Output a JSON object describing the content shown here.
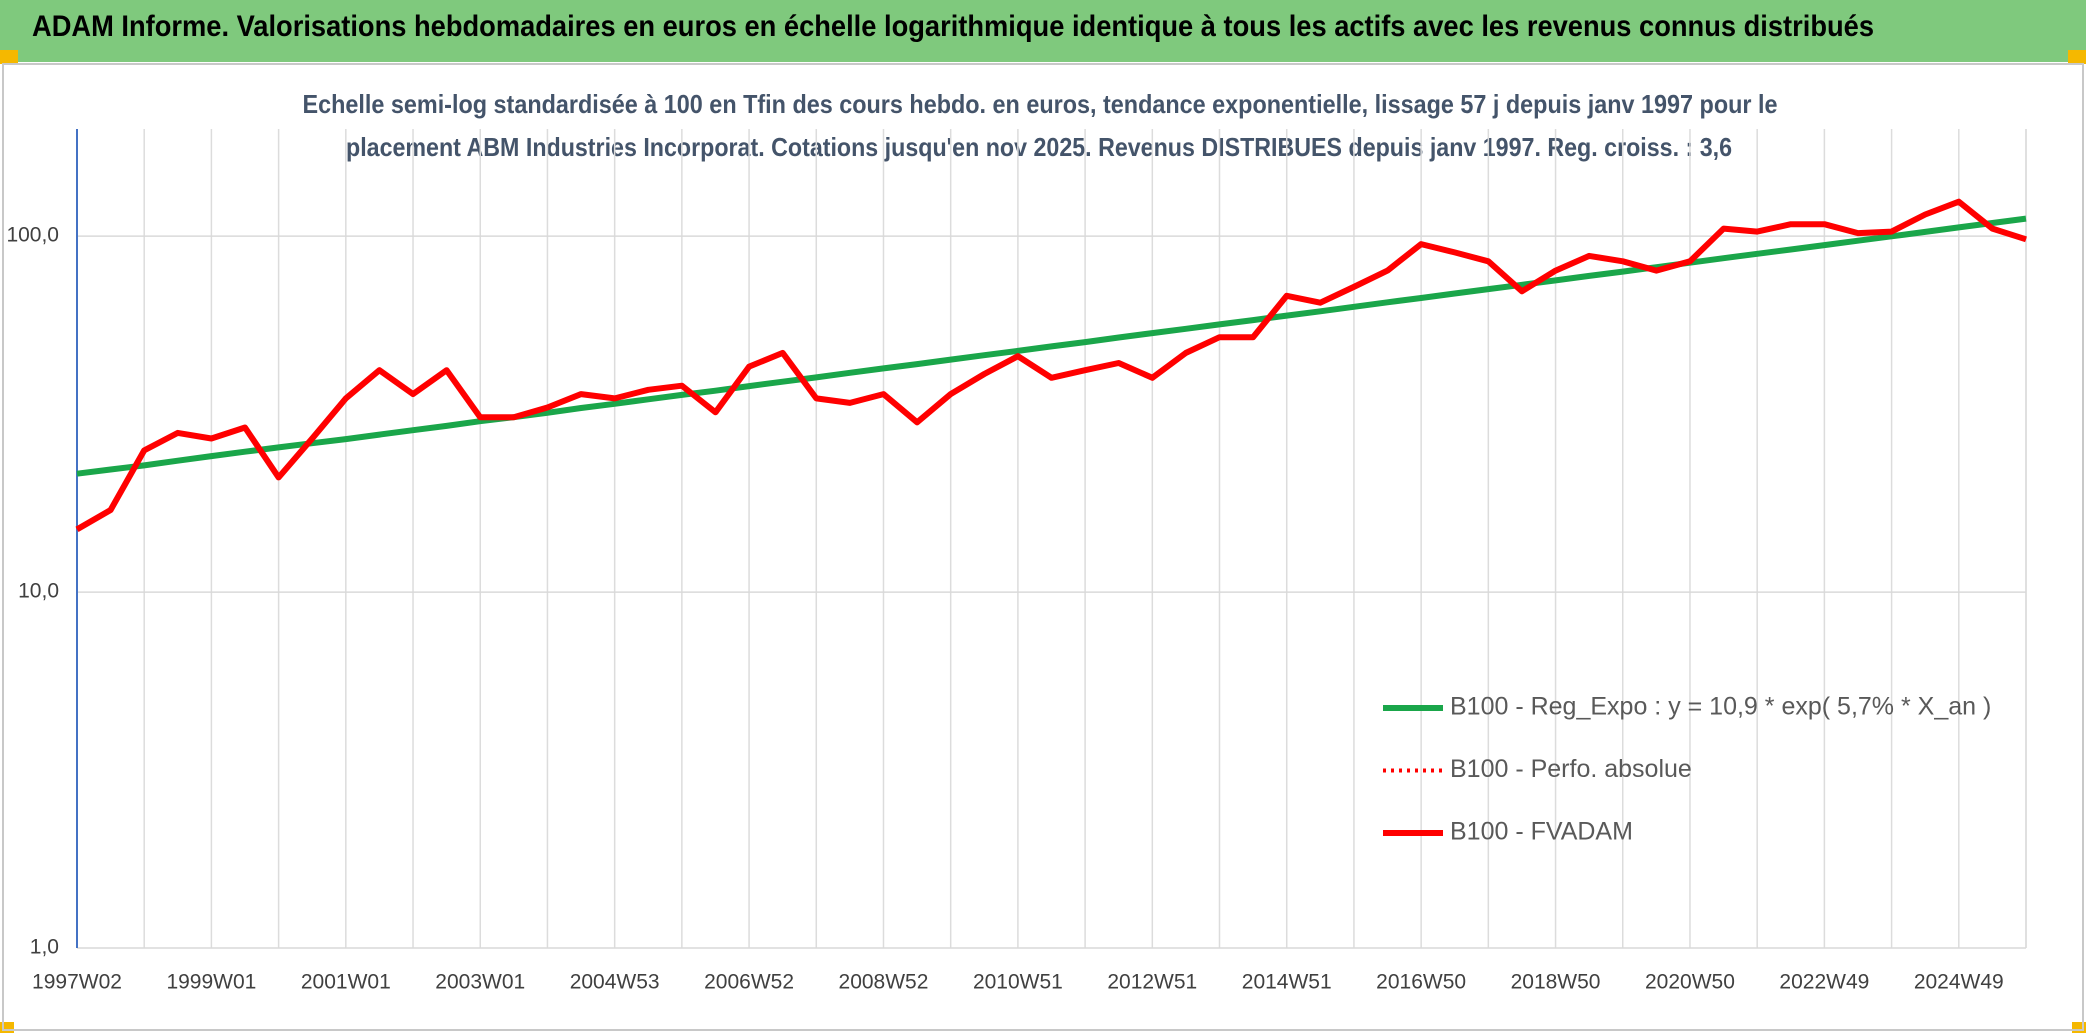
{
  "chart_data": {
    "type": "line",
    "title": "ADAM Informe. Valorisations hebdomadaires en euros en échelle logarithmique identique à tous les actifs avec les revenus connus distribués",
    "subtitle": [
      "Echelle semi-log standardisée à 100 en Tfin des cours hebdo. en euros, tendance exponentielle, lissage 57 j depuis janv 1997 pour le",
      "placement ABM Industries Incorporat. Cotations jusqu'en nov 2025. Revenus DISTRIBUES depuis janv 1997. Reg. croiss. : 3,6"
    ],
    "categories": [
      "1997W02",
      null,
      null,
      null,
      "1999W01",
      null,
      null,
      null,
      "2001W01",
      null,
      null,
      null,
      "2003W01",
      null,
      null,
      null,
      "2004W53",
      null,
      null,
      null,
      "2006W52",
      null,
      null,
      null,
      "2008W52",
      null,
      null,
      null,
      "2010W51",
      null,
      null,
      null,
      "2012W51",
      null,
      null,
      null,
      "2014W51",
      null,
      null,
      null,
      "2016W50",
      null,
      null,
      null,
      "2018W50",
      null,
      null,
      null,
      "2020W50",
      null,
      null,
      null,
      "2022W49",
      null,
      null,
      null,
      "2024W49",
      null,
      null
    ],
    "series": [
      {
        "name": "B100 - Reg_Expo : y = 10,9 * exp( 5,7% *  X_an )",
        "color": "#1aa64a",
        "dash": "solid",
        "values": [
          21.5,
          22.1,
          22.7,
          23.4,
          24.1,
          24.8,
          25.5,
          26.2,
          26.9,
          27.7,
          28.5,
          29.3,
          30.2,
          31.0,
          31.9,
          32.9,
          33.8,
          34.8,
          35.8,
          36.8,
          37.9,
          39.0,
          40.1,
          41.3,
          42.5,
          43.7,
          45.0,
          46.3,
          47.6,
          49.0,
          50.4,
          51.9,
          53.4,
          54.9,
          56.5,
          58.1,
          59.8,
          61.5,
          63.3,
          65.2,
          67.0,
          69.0,
          71.0,
          73.0,
          75.1,
          77.3,
          79.5,
          81.8,
          84.2,
          86.7,
          89.2,
          91.7,
          94.4,
          97.1,
          99.9,
          102.8,
          105.8,
          108.9,
          112.0
        ]
      },
      {
        "name": "B100 - Perfo. absolue",
        "color": "#ff0000",
        "dash": "dotted",
        "values": [
          15,
          17,
          25,
          28,
          27,
          29,
          21,
          27,
          35,
          42,
          36,
          42,
          31,
          31,
          33,
          36,
          35,
          37,
          38,
          32,
          43,
          47,
          35,
          34,
          36,
          30,
          36,
          41,
          46,
          40,
          42,
          44,
          40,
          47,
          52,
          52,
          68,
          65,
          72,
          80,
          95,
          90,
          85,
          70,
          80,
          88,
          85,
          80,
          85,
          105,
          103,
          108,
          108,
          102,
          103,
          115,
          125,
          105,
          98
        ]
      },
      {
        "name": "B100 - FVADAM",
        "color": "#ff0000",
        "dash": "solid",
        "values": [
          15,
          17,
          25,
          28,
          27,
          29,
          21,
          27,
          35,
          42,
          36,
          42,
          31,
          31,
          33,
          36,
          35,
          37,
          38,
          32,
          43,
          47,
          35,
          34,
          36,
          30,
          36,
          41,
          46,
          40,
          42,
          44,
          40,
          47,
          52,
          52,
          68,
          65,
          72,
          80,
          95,
          90,
          85,
          70,
          80,
          88,
          85,
          80,
          85,
          105,
          103,
          108,
          108,
          102,
          103,
          115,
          125,
          105,
          98
        ]
      }
    ],
    "log_scale": true,
    "ylim": [
      1,
      200
    ],
    "yticks": [
      {
        "value": 1,
        "label": "1,0"
      },
      {
        "value": 10,
        "label": "10,0"
      },
      {
        "value": 100,
        "label": "100,0"
      }
    ],
    "grid": true,
    "legend": "lower right"
  }
}
